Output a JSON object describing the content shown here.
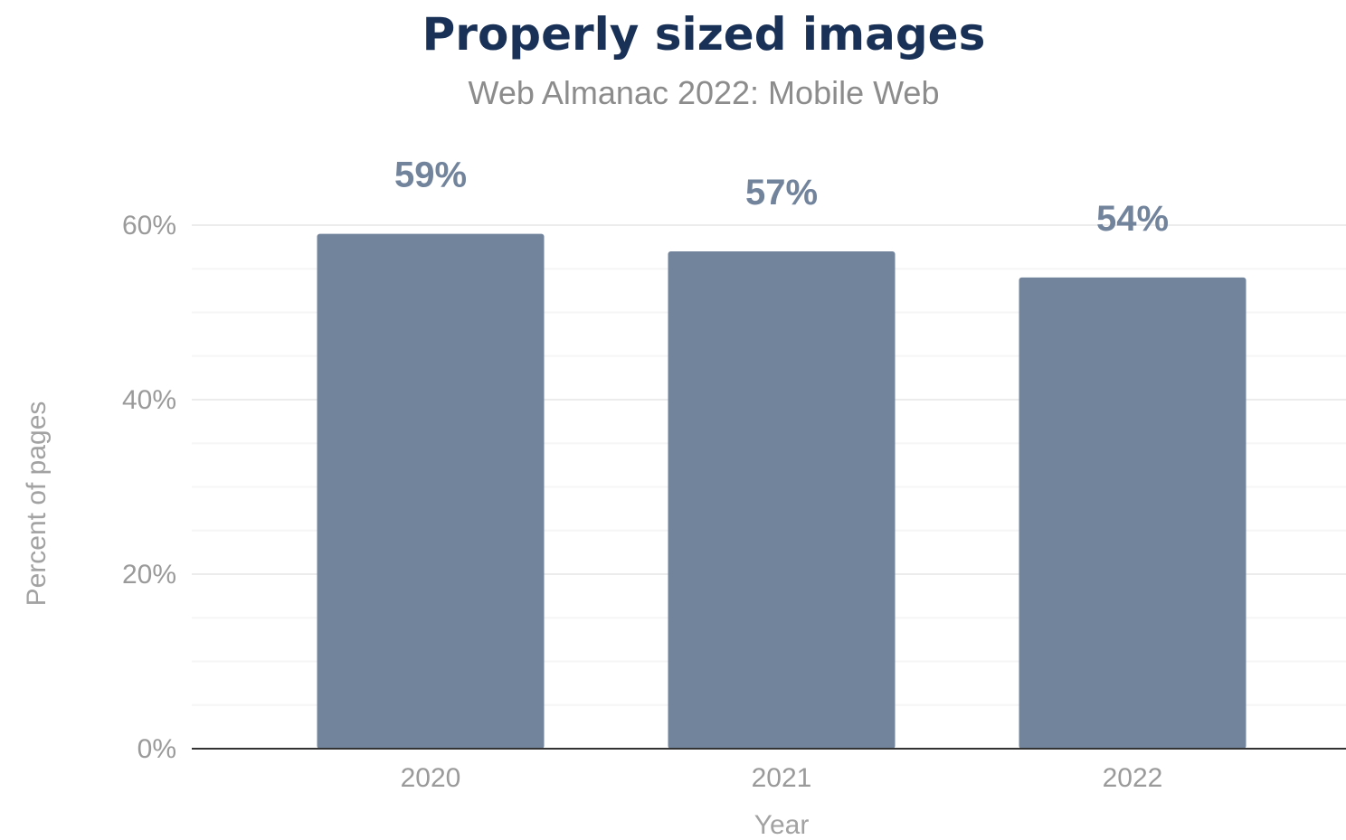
{
  "chart_data": {
    "type": "bar",
    "title": "Properly sized images",
    "subtitle": "Web Almanac 2022: Mobile Web",
    "categories": [
      "2020",
      "2021",
      "2022"
    ],
    "values": [
      59,
      57,
      54
    ],
    "value_labels": [
      "59%",
      "57%",
      "54%"
    ],
    "xlabel": "Year",
    "ylabel": "Percent of pages",
    "ylim": [
      0,
      60
    ],
    "yticks": [
      0,
      20,
      40,
      60
    ],
    "ytick_labels": [
      "0%",
      "20%",
      "40%",
      "60%"
    ],
    "grid": true,
    "legend": "none",
    "colors": {
      "bar": "#72839c",
      "data_label": "#72839c",
      "title": "#1a3157"
    }
  }
}
